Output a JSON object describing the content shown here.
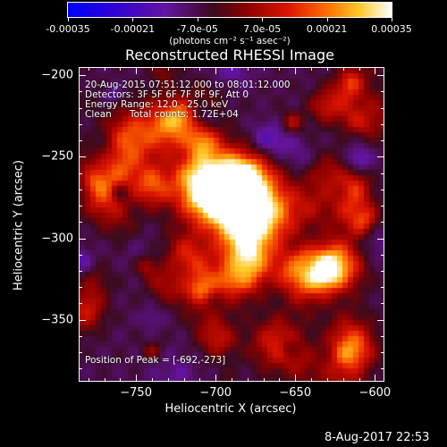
{
  "colorbar": {
    "tick_labels": [
      "-0.00035",
      "-0.00021",
      "-7.0e-05",
      "7.0e-05",
      "0.00021",
      "0.00035"
    ],
    "tick_values": [
      -0.00035,
      -0.00021,
      -7e-05,
      7e-05,
      0.00021,
      0.00035
    ],
    "range": [
      -0.00035,
      0.00035
    ],
    "units_label": "(photons cm⁻² s⁻¹ asec⁻²)",
    "colormap": "blue-purple-red-orange-yellow-white"
  },
  "plot": {
    "title": "Reconstructed RHESSI Image",
    "xlabel": "Heliocentric X (arcsec)",
    "ylabel": "Heliocentric Y (arcsec)",
    "xlim": [
      -786,
      -594
    ],
    "ylim": [
      -388,
      -195
    ],
    "x_ticks": [
      -750,
      -700,
      -650,
      -600
    ],
    "x_tick_labels": [
      "−750",
      "−700",
      "−650",
      "−600"
    ],
    "y_ticks": [
      -200,
      -250,
      -300,
      -350
    ],
    "y_tick_labels": [
      "−200",
      "−250",
      "−300",
      "−350"
    ]
  },
  "annotations": {
    "time_range": "20-Aug-2015 07:51:12.000 to 08:01:12.000",
    "detectors": "Detectors: 3F 5F 6F 7F 8F 9F, Att 0",
    "energy_range": "Energy Range: 12.0 - 25.0 keV",
    "method_counts": "Clean      Total counts: 1.72E+04",
    "peak_position": "Position of Peak = [-692,-273]"
  },
  "footer": {
    "date": "8-Aug-2017 22:53"
  }
}
